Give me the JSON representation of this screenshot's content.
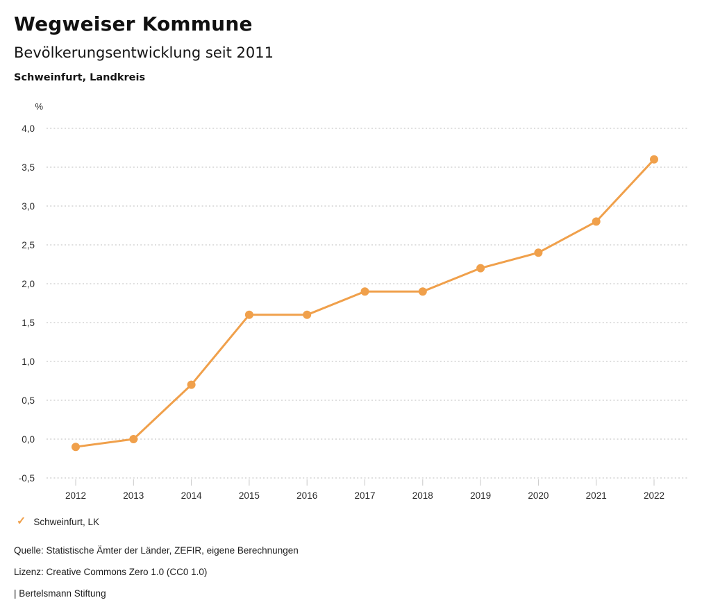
{
  "header": {
    "title": "Wegweiser Kommune",
    "subtitle": "Bevölkerungsentwicklung seit 2011",
    "region": "Schweinfurt, Landkreis"
  },
  "chart_data": {
    "type": "line",
    "title": "Bevölkerungsentwicklung seit 2011",
    "subtitle": "Schweinfurt, Landkreis",
    "xlabel": "",
    "ylabel": "%",
    "x": [
      "2012",
      "2013",
      "2014",
      "2015",
      "2016",
      "2017",
      "2018",
      "2019",
      "2020",
      "2021",
      "2022"
    ],
    "series": [
      {
        "name": "Schweinfurt, LK",
        "color": "#F0A04B",
        "values": [
          -0.1,
          0.0,
          0.7,
          1.6,
          1.6,
          1.9,
          1.9,
          2.2,
          2.4,
          2.8,
          3.6
        ]
      }
    ],
    "ylim": [
      -0.5,
      4.0
    ],
    "ytick_step": 0.5,
    "decimal_separator": ",",
    "grid": "horizontal-dotted",
    "legend_position": "bottom-left"
  },
  "legend": {
    "check_icon": "✓",
    "label": "Schweinfurt, LK"
  },
  "footer": {
    "source": "Quelle: Statistische Ämter der Länder, ZEFIR, eigene Berechnungen",
    "license": "Lizenz: Creative Commons Zero 1.0 (CC0 1.0)",
    "attribution": "| Bertelsmann Stiftung"
  },
  "colors": {
    "accent": "#F0A04B",
    "grid": "#BDBDBD",
    "tick": "#C8C8C8",
    "text": "#2B2B2B"
  }
}
